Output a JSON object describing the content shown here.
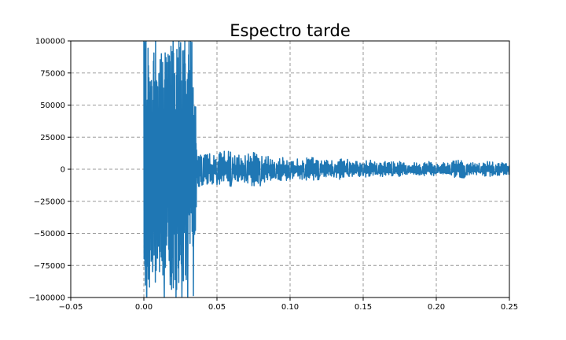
{
  "chart_data": {
    "type": "line",
    "title": "Espectro tarde",
    "xlabel": "",
    "ylabel": "",
    "xlim": [
      -0.05,
      0.25
    ],
    "ylim": [
      -100000,
      100000
    ],
    "grid": true,
    "grid_style": "dashed",
    "x_ticks": [
      "−0.05",
      "0.00",
      "0.05",
      "0.10",
      "0.15",
      "0.20",
      "0.25"
    ],
    "y_ticks": [
      "100000",
      "75000",
      "50000",
      "25000",
      "0",
      "−25000",
      "−50000",
      "−75000",
      "−100000"
    ],
    "x_tick_values": [
      -0.05,
      0.0,
      0.05,
      0.1,
      0.15,
      0.2,
      0.25
    ],
    "y_tick_values": [
      100000,
      75000,
      50000,
      25000,
      0,
      -25000,
      -50000,
      -75000,
      -100000
    ],
    "series": [
      {
        "color": "#1f77b4",
        "x": [
          0.0,
          0.002,
          0.004,
          0.006,
          0.008,
          0.01,
          0.012,
          0.014,
          0.016,
          0.018,
          0.02,
          0.022,
          0.024,
          0.026,
          0.028,
          0.03,
          0.032,
          0.034,
          0.036,
          0.04,
          0.045,
          0.05,
          0.055,
          0.06,
          0.065,
          0.07,
          0.075,
          0.08,
          0.085,
          0.09,
          0.095,
          0.1,
          0.105,
          0.11,
          0.115,
          0.12,
          0.125,
          0.13,
          0.135,
          0.14,
          0.145,
          0.15,
          0.155,
          0.16,
          0.165,
          0.17,
          0.175,
          0.18,
          0.185,
          0.19,
          0.195,
          0.2,
          0.205,
          0.21,
          0.215,
          0.22,
          0.225,
          0.23,
          0.235,
          0.24,
          0.245,
          0.25
        ],
        "y": [
          100000,
          -100000,
          60000,
          -80000,
          100000,
          -60000,
          90000,
          -100000,
          70000,
          -90000,
          100000,
          -100000,
          100000,
          -100000,
          100000,
          -100000,
          100000,
          -60000,
          15000,
          -10000,
          12000,
          -12000,
          14000,
          -10000,
          11000,
          -9000,
          13000,
          -8000,
          10000,
          -7000,
          9000,
          -8000,
          8000,
          -6000,
          9000,
          -5000,
          7000,
          -6000,
          8000,
          -5000,
          6000,
          -5000,
          7000,
          -4000,
          6000,
          -5000,
          6000,
          -4000,
          5000,
          -4000,
          6000,
          -3000,
          5000,
          -4000,
          7000,
          -3000,
          5000,
          -3000,
          6000,
          -2000,
          5000,
          3000
        ]
      }
    ]
  }
}
